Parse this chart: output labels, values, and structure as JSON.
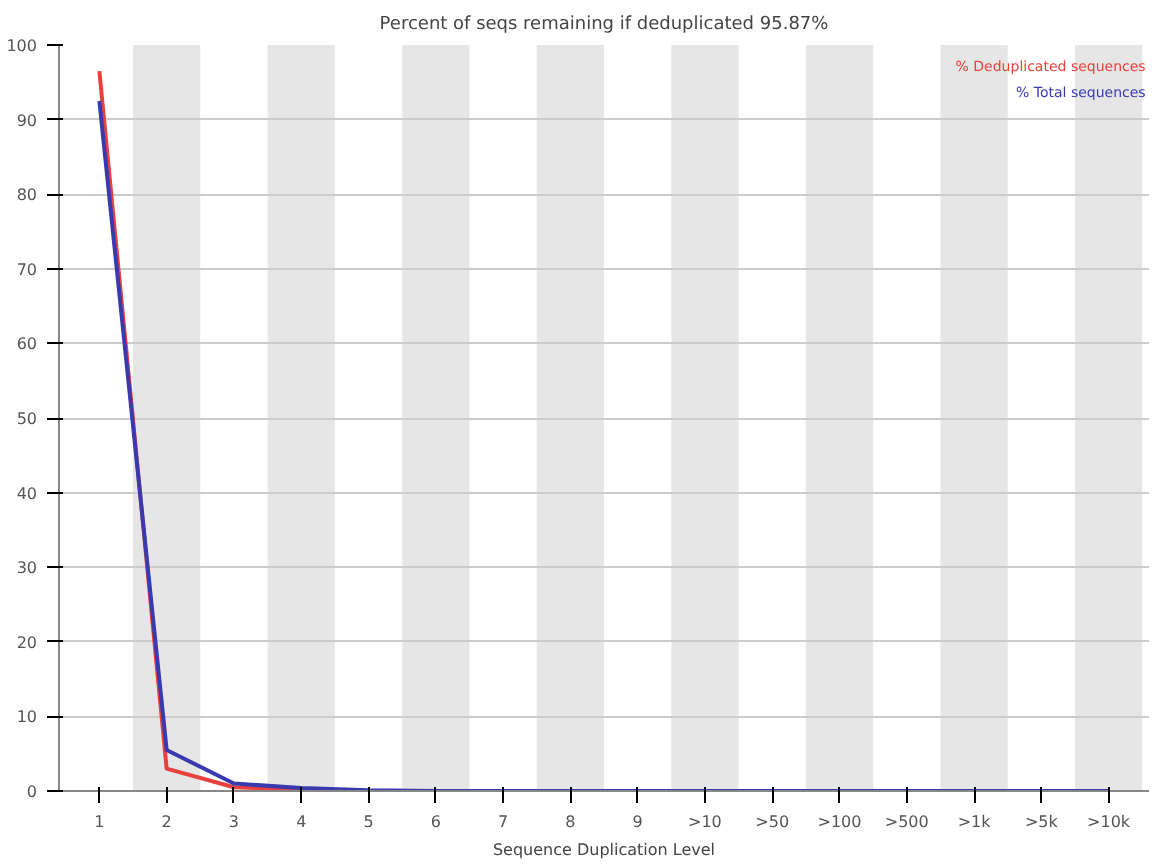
{
  "chart_data": {
    "type": "line",
    "title": "Percent of seqs remaining if deduplicated 95.87%",
    "xlabel": "Sequence Duplication Level",
    "categories": [
      "1",
      "2",
      "3",
      "4",
      "5",
      "6",
      "7",
      "8",
      "9",
      ">10",
      ">50",
      ">100",
      ">500",
      ">1k",
      ">5k",
      ">10k"
    ],
    "series": [
      {
        "name": "% Deduplicated sequences",
        "color": "#e8413c",
        "values": [
          96.5,
          3.0,
          0.5,
          0.2,
          null,
          null,
          null,
          null,
          null,
          null,
          null,
          null,
          null,
          null,
          null,
          null
        ]
      },
      {
        "name": "% Total sequences",
        "color": "#3a3ab0",
        "values": [
          92.5,
          5.5,
          1.0,
          0.4,
          0.1,
          0,
          0,
          0,
          0,
          0,
          0,
          0,
          0,
          0,
          0,
          0
        ]
      }
    ],
    "bands": [
      {
        "axis": "x",
        "from": "2",
        "to": "2",
        "color": "#e6e6e6"
      },
      {
        "axis": "x",
        "from": "4",
        "to": "4",
        "color": "#e6e6e6"
      },
      {
        "axis": "x",
        "from": "6",
        "to": "6",
        "color": "#e6e6e6"
      },
      {
        "axis": "x",
        "from": "8",
        "to": "8",
        "color": "#e6e6e6"
      },
      {
        "axis": "x",
        "from": ">10",
        "to": ">10",
        "color": "#e6e6e6"
      },
      {
        "axis": "x",
        "from": ">100",
        "to": ">100",
        "color": "#e6e6e6"
      },
      {
        "axis": "x",
        "from": ">1k",
        "to": ">1k",
        "color": "#e6e6e6"
      },
      {
        "axis": "x",
        "from": ">10k",
        "to": ">10k",
        "color": "#e6e6e6"
      }
    ],
    "ylim": [
      0,
      100
    ],
    "yticks": [
      0,
      10,
      20,
      30,
      40,
      50,
      60,
      70,
      80,
      90,
      100
    ],
    "grid": "y",
    "legend": "top right",
    "marker": "none",
    "line_style": "solid"
  }
}
